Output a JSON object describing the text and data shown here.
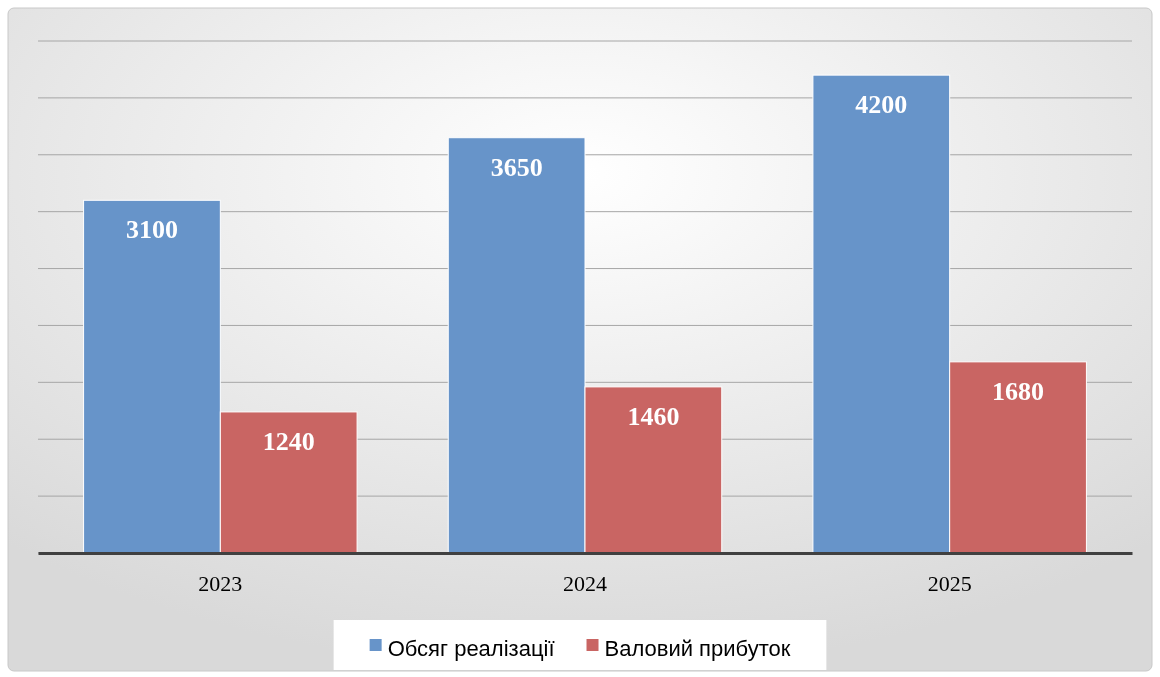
{
  "chart_data": {
    "type": "bar",
    "categories": [
      "2023",
      "2024",
      "2025"
    ],
    "series": [
      {
        "name": "Обсяг реалізації",
        "color": "#6794c9",
        "values": [
          3100,
          3650,
          4200
        ]
      },
      {
        "name": "Валовий прибуток",
        "color": "#c96563",
        "values": [
          1240,
          1460,
          1680
        ]
      }
    ],
    "ylim": [
      0,
      4500
    ],
    "yticks": [
      {
        "value": 0,
        "label": null
      },
      {
        "value": 500,
        "label": null
      },
      {
        "value": 1000,
        "label": null
      },
      {
        "value": 1500,
        "label": null
      },
      {
        "value": 2000,
        "label": null
      },
      {
        "value": 2500,
        "label": null
      },
      {
        "value": 3000,
        "label": null
      },
      {
        "value": 3500,
        "label": null
      },
      {
        "value": 4000,
        "label": null
      },
      {
        "value": 4500,
        "label": null
      }
    ],
    "grid": "y",
    "tick_labels": "x",
    "data_labels": true,
    "legend": "bottom"
  }
}
